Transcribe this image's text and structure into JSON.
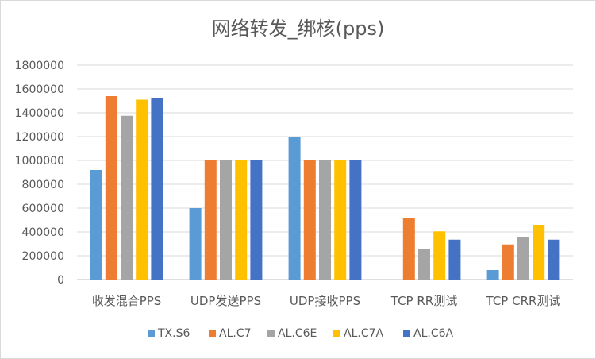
{
  "chart_data": {
    "type": "bar",
    "title": "网络转发_绑核(pps)",
    "xlabel": "",
    "ylabel": "",
    "ylim": [
      0,
      1800000
    ],
    "yticks": [
      0,
      200000,
      400000,
      600000,
      800000,
      1000000,
      1200000,
      1400000,
      1600000,
      1800000
    ],
    "grid": true,
    "legend_position": "bottom",
    "categories": [
      "收发混合PPS",
      "UDP发送PPS",
      "UDP接收PPS",
      "TCP RR测试",
      "TCP CRR测试"
    ],
    "series": [
      {
        "name": "TX.S6",
        "color": "#5b9bd5",
        "values": [
          920000,
          600000,
          1200000,
          0,
          80000
        ]
      },
      {
        "name": "AL.C7",
        "color": "#ed7d31",
        "values": [
          1540000,
          1000000,
          1000000,
          520000,
          295000
        ]
      },
      {
        "name": "AL.C6E",
        "color": "#a5a5a5",
        "values": [
          1375000,
          1000000,
          1000000,
          260000,
          355000
        ]
      },
      {
        "name": "AL.C7A",
        "color": "#ffc000",
        "values": [
          1510000,
          1000000,
          1000000,
          405000,
          460000
        ]
      },
      {
        "name": "AL.C6A",
        "color": "#4472c4",
        "values": [
          1520000,
          1000000,
          1000000,
          335000,
          335000
        ]
      }
    ]
  }
}
